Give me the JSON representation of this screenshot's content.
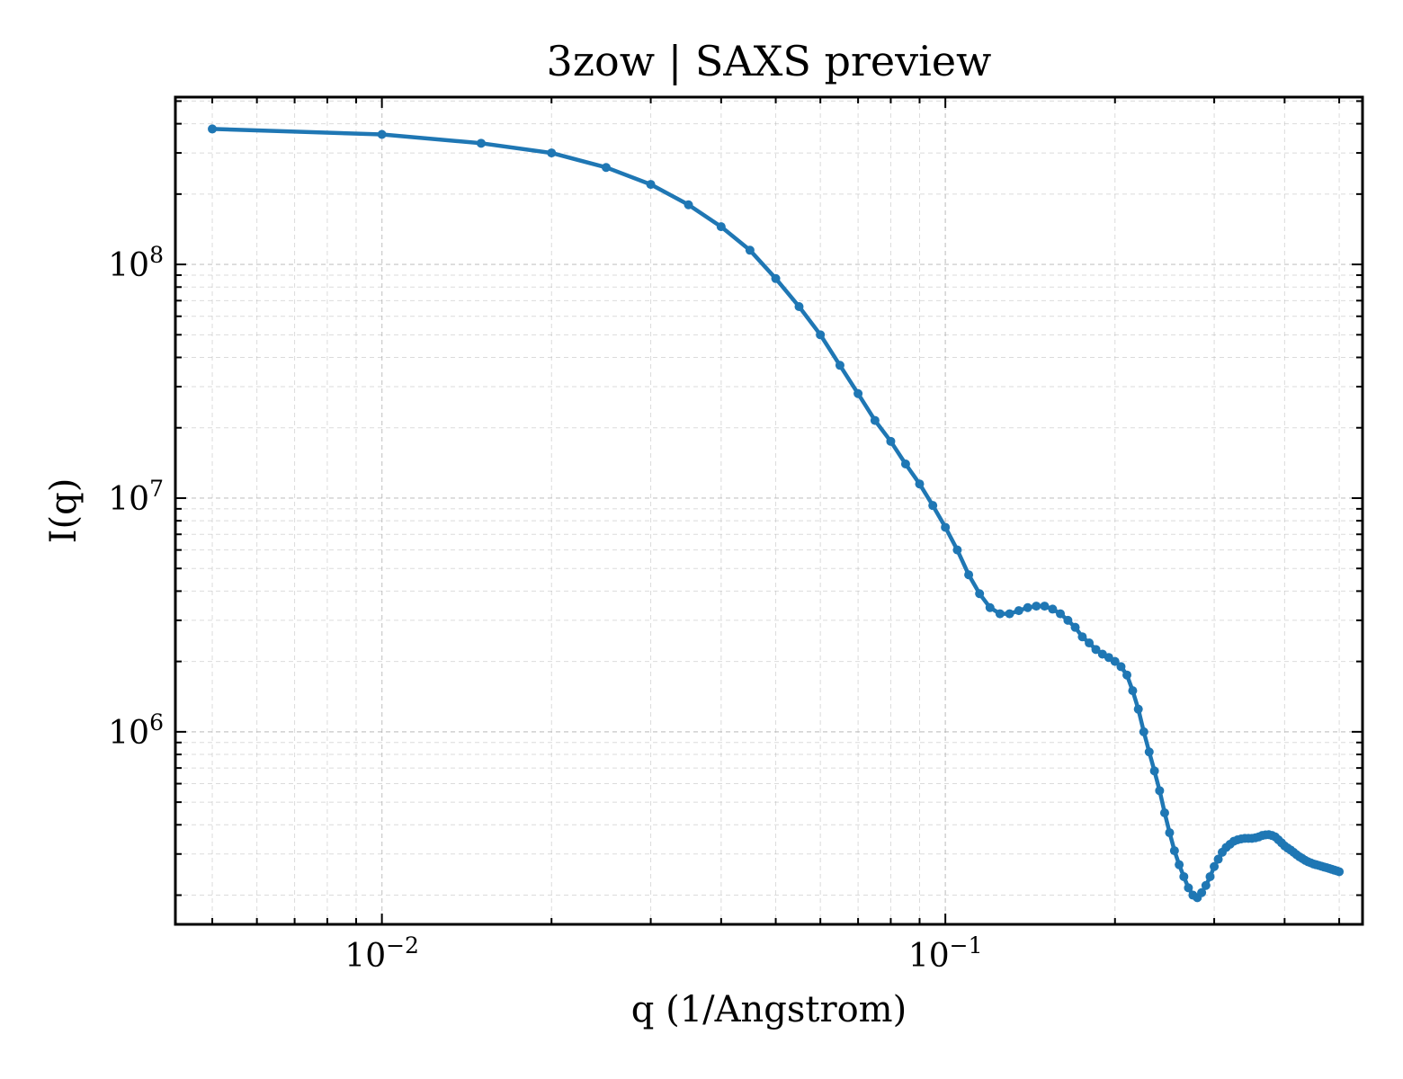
{
  "chart_data": {
    "type": "line",
    "title": "3zow | SAXS preview",
    "xlabel": "q (1/Angstrom)",
    "ylabel": "I(q)",
    "xscale": "log",
    "yscale": "log",
    "xlim": [
      0.0043,
      0.55
    ],
    "ylim": [
      150000,
      520000000
    ],
    "x_ticks": [
      {
        "value": 0.01,
        "base": "10",
        "exp": "−2"
      },
      {
        "value": 0.1,
        "base": "10",
        "exp": "−1"
      }
    ],
    "y_ticks": [
      {
        "value": 1000000,
        "base": "10",
        "exp": "6"
      },
      {
        "value": 10000000,
        "base": "10",
        "exp": "7"
      },
      {
        "value": 100000000,
        "base": "10",
        "exp": "8"
      }
    ],
    "grid": true,
    "series_color": "#1f77b4",
    "x": [
      0.005,
      0.01,
      0.015,
      0.02,
      0.025,
      0.03,
      0.035,
      0.04,
      0.045,
      0.05,
      0.055,
      0.06,
      0.065,
      0.07,
      0.075,
      0.08,
      0.085,
      0.09,
      0.095,
      0.1,
      0.105,
      0.11,
      0.115,
      0.12,
      0.125,
      0.13,
      0.135,
      0.14,
      0.145,
      0.15,
      0.155,
      0.16,
      0.165,
      0.17,
      0.175,
      0.18,
      0.185,
      0.19,
      0.195,
      0.2,
      0.205,
      0.21,
      0.215,
      0.22,
      0.225,
      0.23,
      0.235,
      0.24,
      0.245,
      0.25,
      0.255,
      0.26,
      0.265,
      0.27,
      0.275,
      0.28,
      0.285,
      0.29,
      0.295,
      0.3,
      0.305,
      0.31,
      0.315,
      0.32,
      0.325,
      0.33,
      0.335,
      0.34,
      0.345,
      0.35,
      0.355,
      0.36,
      0.365,
      0.37,
      0.375,
      0.38,
      0.385,
      0.39,
      0.395,
      0.4,
      0.405,
      0.41,
      0.415,
      0.42,
      0.425,
      0.43,
      0.435,
      0.44,
      0.445,
      0.45,
      0.455,
      0.46,
      0.465,
      0.47,
      0.475,
      0.48,
      0.485,
      0.49,
      0.495,
      0.5
    ],
    "y": [
      380000000,
      360000000,
      330000000,
      300000000,
      260000000,
      220000000,
      180000000,
      145000000,
      115000000,
      87000000,
      66000000,
      50000000,
      37000000,
      28000000,
      21500000,
      17500000,
      14000000,
      11500000,
      9300000,
      7500000,
      6000000,
      4700000,
      3900000,
      3400000,
      3200000,
      3200000,
      3300000,
      3400000,
      3450000,
      3450000,
      3350000,
      3200000,
      3000000,
      2800000,
      2550000,
      2400000,
      2250000,
      2150000,
      2080000,
      2000000,
      1900000,
      1750000,
      1500000,
      1250000,
      1000000,
      820000,
      680000,
      560000,
      450000,
      370000,
      310000,
      270000,
      240000,
      215000,
      200000,
      195000,
      205000,
      220000,
      240000,
      265000,
      285000,
      305000,
      320000,
      330000,
      340000,
      345000,
      348000,
      350000,
      350000,
      350000,
      352000,
      355000,
      360000,
      362000,
      363000,
      360000,
      355000,
      345000,
      335000,
      325000,
      318000,
      312000,
      305000,
      298000,
      292000,
      287000,
      282000,
      278000,
      275000,
      272000,
      270000,
      268000,
      266000,
      264000,
      262000,
      260000,
      258000,
      256000,
      254000,
      252000
    ]
  }
}
